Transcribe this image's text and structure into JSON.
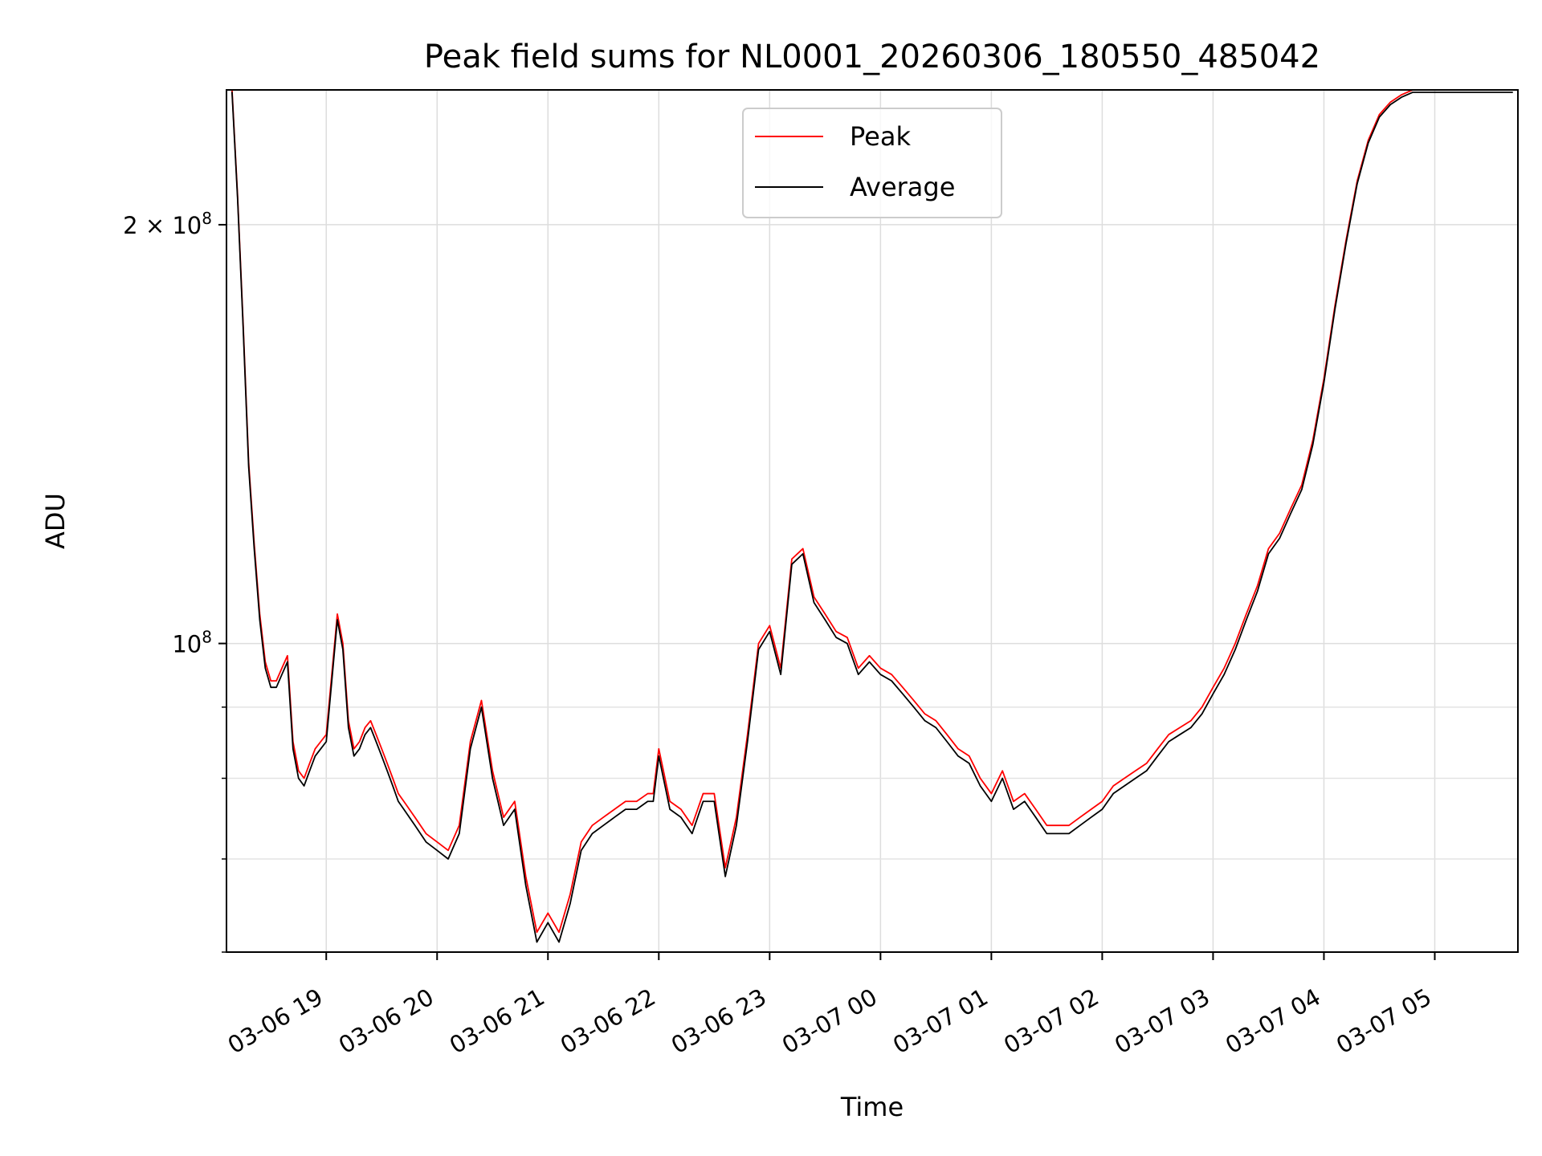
{
  "chart_data": {
    "type": "line",
    "title": "Peak field sums for NL0001_20260306_180550_485042",
    "xlabel": "Time",
    "ylabel": "ADU",
    "yscale": "log",
    "grid": true,
    "legend_position": "top-center",
    "xlim": [
      18.1,
      29.75
    ],
    "ylim": [
      60000000,
      250000000
    ],
    "x_ticks": [
      {
        "x": 19,
        "label": "03-06 19"
      },
      {
        "x": 20,
        "label": "03-06 20"
      },
      {
        "x": 21,
        "label": "03-06 21"
      },
      {
        "x": 22,
        "label": "03-06 22"
      },
      {
        "x": 23,
        "label": "03-06 23"
      },
      {
        "x": 24,
        "label": "03-07 00"
      },
      {
        "x": 25,
        "label": "03-07 01"
      },
      {
        "x": 26,
        "label": "03-07 02"
      },
      {
        "x": 27,
        "label": "03-07 03"
      },
      {
        "x": 28,
        "label": "03-07 04"
      },
      {
        "x": 29,
        "label": "03-07 05"
      }
    ],
    "y_ticks_major": [
      {
        "y": 100000000,
        "label_base": "10",
        "label_exp": "8"
      },
      {
        "y": 200000000,
        "label_base": "2 × 10",
        "label_exp": "8"
      }
    ],
    "y_ticks_minor": [
      60000000,
      70000000,
      80000000,
      90000000
    ],
    "series": [
      {
        "name": "Peak",
        "color": "#ff0000",
        "x": [
          18.15,
          18.2,
          18.25,
          18.3,
          18.35,
          18.4,
          18.45,
          18.5,
          18.55,
          18.6,
          18.65,
          18.7,
          18.75,
          18.8,
          18.85,
          18.9,
          18.95,
          19.0,
          19.05,
          19.1,
          19.15,
          19.2,
          19.25,
          19.3,
          19.35,
          19.4,
          19.45,
          19.5,
          19.55,
          19.6,
          19.65,
          19.7,
          19.8,
          19.9,
          20.0,
          20.1,
          20.2,
          20.3,
          20.4,
          20.5,
          20.6,
          20.7,
          20.8,
          20.9,
          21.0,
          21.1,
          21.2,
          21.3,
          21.4,
          21.5,
          21.6,
          21.7,
          21.8,
          21.9,
          21.95,
          22.0,
          22.1,
          22.2,
          22.3,
          22.4,
          22.5,
          22.6,
          22.7,
          22.8,
          22.9,
          23.0,
          23.1,
          23.2,
          23.3,
          23.4,
          23.5,
          23.6,
          23.7,
          23.8,
          23.9,
          24.0,
          24.1,
          24.2,
          24.3,
          24.4,
          24.5,
          24.6,
          24.7,
          24.8,
          24.9,
          25.0,
          25.1,
          25.2,
          25.3,
          25.4,
          25.5,
          25.6,
          25.7,
          25.8,
          25.9,
          26.0,
          26.1,
          26.2,
          26.3,
          26.4,
          26.5,
          26.6,
          26.7,
          26.8,
          26.9,
          27.0,
          27.1,
          27.2,
          27.3,
          27.4,
          27.5,
          27.6,
          27.7,
          27.8,
          27.9,
          28.0,
          28.1,
          28.2,
          28.3,
          28.4,
          28.5,
          28.6,
          28.7,
          28.8,
          28.9,
          29.0,
          29.1,
          29.2,
          29.3,
          29.4,
          29.5,
          29.55,
          29.6,
          29.65,
          29.7
        ],
        "values": [
          250000000,
          210000000,
          170000000,
          135000000,
          118000000,
          105000000,
          97000000,
          94000000,
          94000000,
          96000000,
          98000000,
          85000000,
          81000000,
          80000000,
          82000000,
          84000000,
          85000000,
          86000000,
          95000000,
          105000000,
          100000000,
          88000000,
          84000000,
          85000000,
          87000000,
          88000000,
          86000000,
          84000000,
          82000000,
          80000000,
          78000000,
          77000000,
          75000000,
          73000000,
          72000000,
          71000000,
          74000000,
          85000000,
          91000000,
          81000000,
          75000000,
          77000000,
          68000000,
          62000000,
          64000000,
          62000000,
          66000000,
          72000000,
          74000000,
          75000000,
          76000000,
          77000000,
          77000000,
          78000000,
          78000000,
          84000000,
          77000000,
          76000000,
          74000000,
          78000000,
          78000000,
          69000000,
          75000000,
          86000000,
          100000000,
          103000000,
          96000000,
          115000000,
          117000000,
          108000000,
          105000000,
          102000000,
          101000000,
          96000000,
          98000000,
          96000000,
          95000000,
          93000000,
          91000000,
          89000000,
          88000000,
          86000000,
          84000000,
          83000000,
          80000000,
          78000000,
          81000000,
          77000000,
          78000000,
          76000000,
          74000000,
          74000000,
          74000000,
          75000000,
          76000000,
          77000000,
          79000000,
          80000000,
          81000000,
          82000000,
          84000000,
          86000000,
          87000000,
          88000000,
          90000000,
          93000000,
          96000000,
          100000000,
          105000000,
          110000000,
          117000000,
          120000000,
          125000000,
          130000000,
          140000000,
          155000000,
          175000000,
          195000000,
          215000000,
          230000000,
          240000000,
          245000000,
          248000000,
          250000000,
          250000000,
          250000000,
          250000000,
          250000000,
          250000000,
          250000000,
          250000000,
          250000000,
          250000000,
          250000000,
          250000000
        ]
      },
      {
        "name": "Average",
        "color": "#000000",
        "x": [
          18.15,
          18.2,
          18.25,
          18.3,
          18.35,
          18.4,
          18.45,
          18.5,
          18.55,
          18.6,
          18.65,
          18.7,
          18.75,
          18.8,
          18.85,
          18.9,
          18.95,
          19.0,
          19.05,
          19.1,
          19.15,
          19.2,
          19.25,
          19.3,
          19.35,
          19.4,
          19.45,
          19.5,
          19.55,
          19.6,
          19.65,
          19.7,
          19.8,
          19.9,
          20.0,
          20.1,
          20.2,
          20.3,
          20.4,
          20.5,
          20.6,
          20.7,
          20.8,
          20.9,
          21.0,
          21.1,
          21.2,
          21.3,
          21.4,
          21.5,
          21.6,
          21.7,
          21.8,
          21.9,
          21.95,
          22.0,
          22.1,
          22.2,
          22.3,
          22.4,
          22.5,
          22.6,
          22.7,
          22.8,
          22.9,
          23.0,
          23.1,
          23.2,
          23.3,
          23.4,
          23.5,
          23.6,
          23.7,
          23.8,
          23.9,
          24.0,
          24.1,
          24.2,
          24.3,
          24.4,
          24.5,
          24.6,
          24.7,
          24.8,
          24.9,
          25.0,
          25.1,
          25.2,
          25.3,
          25.4,
          25.5,
          25.6,
          25.7,
          25.8,
          25.9,
          26.0,
          26.1,
          26.2,
          26.3,
          26.4,
          26.5,
          26.6,
          26.7,
          26.8,
          26.9,
          27.0,
          27.1,
          27.2,
          27.3,
          27.4,
          27.5,
          27.6,
          27.7,
          27.8,
          27.9,
          28.0,
          28.1,
          28.2,
          28.3,
          28.4,
          28.5,
          28.6,
          28.7,
          28.8,
          28.9,
          29.0,
          29.1,
          29.2,
          29.3,
          29.4,
          29.5,
          29.55,
          29.6,
          29.65,
          29.7
        ],
        "values": [
          249000000,
          209000000,
          169000000,
          134000000,
          117000000,
          104000000,
          96000000,
          93000000,
          93000000,
          95000000,
          97000000,
          84000000,
          80000000,
          79000000,
          81000000,
          83000000,
          84000000,
          85000000,
          94000000,
          104000000,
          99000000,
          87000000,
          83000000,
          84000000,
          86000000,
          87000000,
          85000000,
          83000000,
          81000000,
          79000000,
          77000000,
          76000000,
          74000000,
          72000000,
          71000000,
          70000000,
          73000000,
          84000000,
          90000000,
          80000000,
          74000000,
          76000000,
          67000000,
          61000000,
          63000000,
          61000000,
          65000000,
          71000000,
          73000000,
          74000000,
          75000000,
          76000000,
          76000000,
          77000000,
          77000000,
          83000000,
          76000000,
          75000000,
          73000000,
          77000000,
          77000000,
          68000000,
          74000000,
          85000000,
          99000000,
          102000000,
          95000000,
          114000000,
          116000000,
          107000000,
          104000000,
          101000000,
          100000000,
          95000000,
          97000000,
          95000000,
          94000000,
          92000000,
          90000000,
          88000000,
          87000000,
          85000000,
          83000000,
          82000000,
          79000000,
          77000000,
          80000000,
          76000000,
          77000000,
          75000000,
          73000000,
          73000000,
          73000000,
          74000000,
          75000000,
          76000000,
          78000000,
          79000000,
          80000000,
          81000000,
          83000000,
          85000000,
          86000000,
          87000000,
          89000000,
          92000000,
          95000000,
          99000000,
          104000000,
          109000000,
          116000000,
          119000000,
          124000000,
          129000000,
          139000000,
          154000000,
          174000000,
          194000000,
          214000000,
          229000000,
          239000000,
          244000000,
          247000000,
          249000000,
          249000000,
          249000000,
          249000000,
          249000000,
          249000000,
          249000000,
          249000000,
          249000000,
          249000000,
          249000000,
          249000000
        ]
      }
    ]
  }
}
